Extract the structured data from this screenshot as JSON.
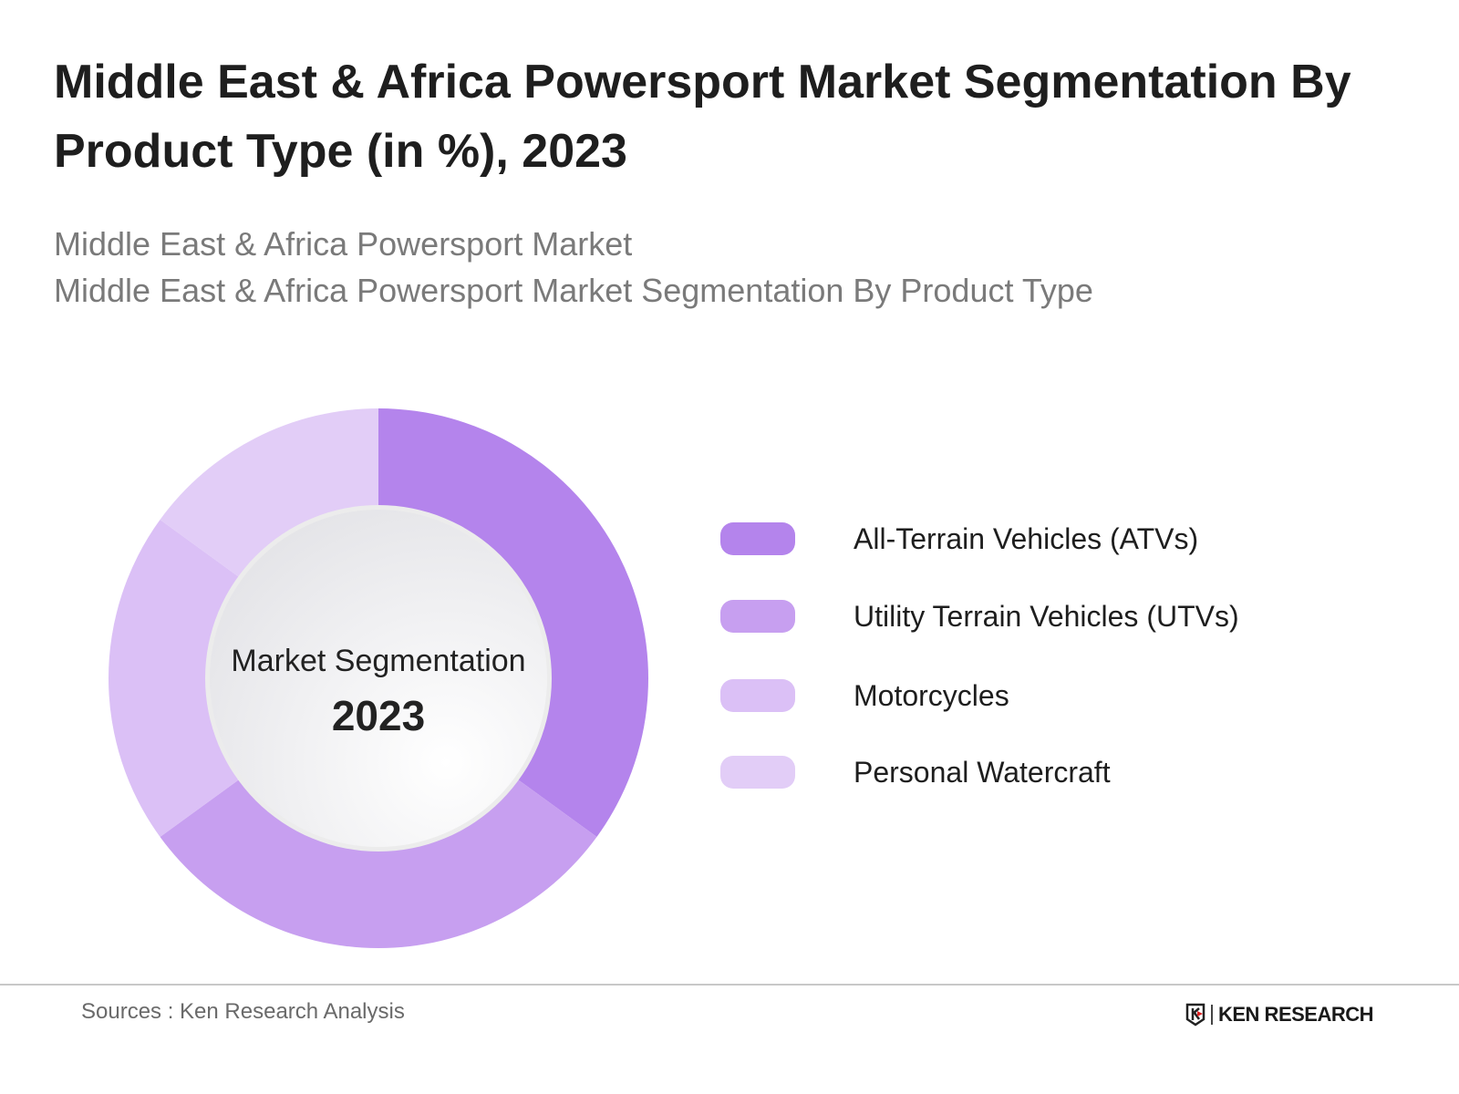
{
  "title": "Middle East & Africa Powersport Market Segmentation By Product Type (in %), 2023",
  "subtitle_lines": [
    "Middle East & Africa Powersport Market",
    "Middle East & Africa Powersport Market Segmentation By Product Type"
  ],
  "chart_data": {
    "type": "pie",
    "style": "donut",
    "categories": [
      "All-Terrain Vehicles (ATVs)",
      "Utility Terrain Vehicles (UTVs)",
      "Motorcycles",
      "Personal Watercraft"
    ],
    "values": [
      35,
      30,
      20,
      15
    ],
    "colors": [
      "#b484ec",
      "#c79ff0",
      "#dbc0f6",
      "#e2cdf7"
    ],
    "center_label": "Market Segmentation",
    "center_year": "2023",
    "legend_position": "right"
  },
  "footer": {
    "source": "Sources : Ken Research Analysis",
    "logo_text": "KEN RESEARCH"
  }
}
